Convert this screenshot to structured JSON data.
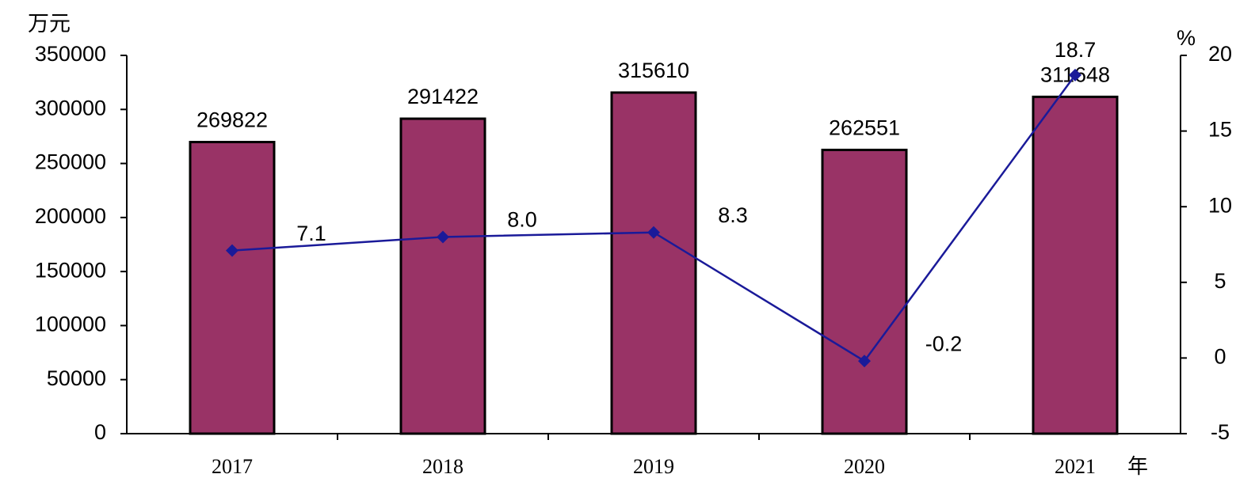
{
  "chart_data": {
    "type": "bar-line",
    "ylabel": "万元",
    "y2label": "%",
    "xlabel": "年",
    "categories": [
      "2017",
      "2018",
      "2019",
      "2020",
      "2021"
    ],
    "series": [
      {
        "type": "bar",
        "color": "#993366",
        "values": [
          269822,
          291422,
          315610,
          262551,
          311648
        ]
      },
      {
        "type": "line",
        "axis": "y2",
        "color": "#1a1a99",
        "values": [
          7.1,
          8.0,
          8.3,
          -0.2,
          18.7
        ],
        "value_labels": [
          "7.1",
          "8.0",
          "8.3",
          "-0.2",
          "18.7"
        ]
      }
    ],
    "ylim": [
      0,
      350000
    ],
    "yticks": [
      0,
      50000,
      100000,
      150000,
      200000,
      250000,
      300000,
      350000
    ],
    "y2lim": [
      -5,
      20
    ],
    "y2ticks": [
      -5,
      0,
      5,
      10,
      15,
      20
    ],
    "grid": false
  }
}
